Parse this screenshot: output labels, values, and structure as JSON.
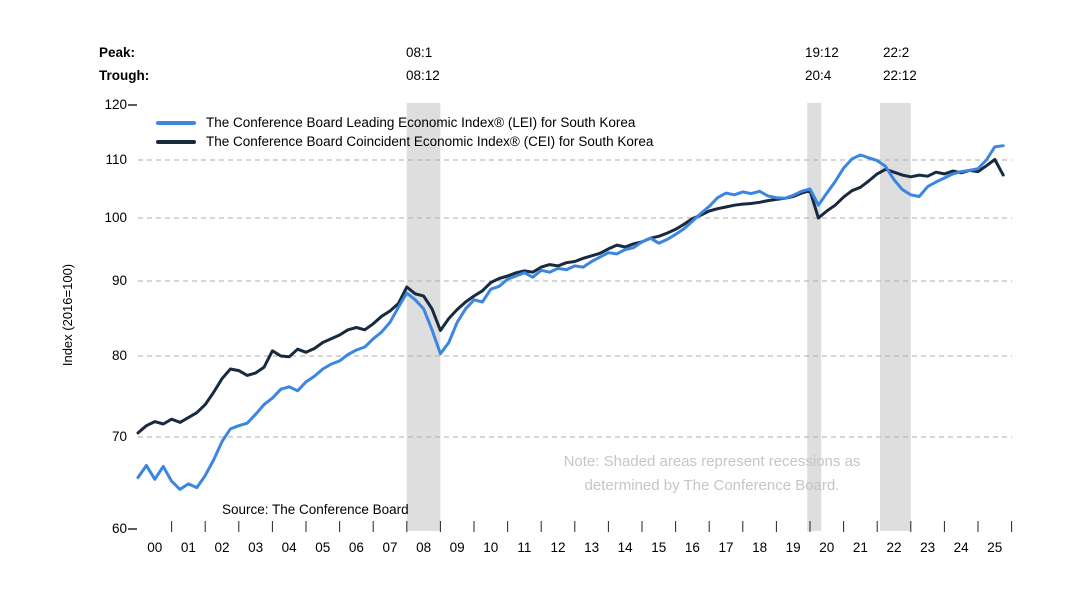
{
  "header": {
    "peak_label": "Peak:",
    "trough_label": "Trough:"
  },
  "recessions": [
    {
      "peak_label": "08:1",
      "trough_label": "08:12",
      "start": 2008.0,
      "end": 2009.0
    },
    {
      "peak_label": "19:12",
      "trough_label": "20:4",
      "start": 2019.917,
      "end": 2020.333
    },
    {
      "peak_label": "22:2",
      "trough_label": "22:12",
      "start": 2022.083,
      "end": 2023.0
    }
  ],
  "legend": [
    {
      "label": "The Conference Board Leading Economic Index® (LEI) for South Korea",
      "color": "#3B86E0"
    },
    {
      "label": "The Conference Board Coincident Economic Index® (CEI) for South Korea",
      "color": "#182A40"
    }
  ],
  "y_axis": {
    "title": "Index (2016=100)",
    "ticks": [
      120,
      110,
      100,
      90,
      80,
      70,
      60
    ]
  },
  "x_axis": {
    "labels": [
      "00",
      "01",
      "02",
      "03",
      "04",
      "05",
      "06",
      "07",
      "08",
      "09",
      "10",
      "11",
      "12",
      "13",
      "14",
      "15",
      "16",
      "17",
      "18",
      "19",
      "20",
      "21",
      "22",
      "23",
      "24",
      "25"
    ]
  },
  "source": "Source: The Conference Board",
  "note_line1": "Note: Shaded areas represent recessions as",
  "note_line2": "determined by The Conference Board.",
  "colors": {
    "lei": "#3B86E0",
    "cei": "#182A40",
    "recession_band": "#DEDEDE",
    "gridline": "#ADADAD",
    "note_text": "#C5C5CA"
  },
  "chart_data": {
    "type": "line",
    "title": "",
    "xlabel": "",
    "ylabel": "Index (2016=100)",
    "ylim": [
      60,
      120
    ],
    "xlim": [
      2000,
      2026
    ],
    "grid": "dashed horizontal at 70,80,90,100,110",
    "legend_position": "top-left inside",
    "x_unit": "decimal year (quarterly)",
    "x": [
      2000,
      2000.25,
      2000.5,
      2000.75,
      2001,
      2001.25,
      2001.5,
      2001.75,
      2002,
      2002.25,
      2002.5,
      2002.75,
      2003,
      2003.25,
      2003.5,
      2003.75,
      2004,
      2004.25,
      2004.5,
      2004.75,
      2005,
      2005.25,
      2005.5,
      2005.75,
      2006,
      2006.25,
      2006.5,
      2006.75,
      2007,
      2007.25,
      2007.5,
      2007.75,
      2008,
      2008.25,
      2008.5,
      2008.75,
      2009,
      2009.25,
      2009.5,
      2009.75,
      2010,
      2010.25,
      2010.5,
      2010.75,
      2011,
      2011.25,
      2011.5,
      2011.75,
      2012,
      2012.25,
      2012.5,
      2012.75,
      2013,
      2013.25,
      2013.5,
      2013.75,
      2014,
      2014.25,
      2014.5,
      2014.75,
      2015,
      2015.25,
      2015.5,
      2015.75,
      2016,
      2016.25,
      2016.5,
      2016.75,
      2017,
      2017.25,
      2017.5,
      2017.75,
      2018,
      2018.25,
      2018.5,
      2018.75,
      2019,
      2019.25,
      2019.5,
      2019.75,
      2020,
      2020.25,
      2020.5,
      2020.75,
      2021,
      2021.25,
      2021.5,
      2021.75,
      2022,
      2022.25,
      2022.5,
      2022.75,
      2023,
      2023.25,
      2023.5,
      2023.75,
      2024,
      2024.25,
      2024.5,
      2024.75,
      2025,
      2025.25,
      2025.5,
      2025.75
    ],
    "series": [
      {
        "name": "LEI",
        "color": "#3B86E0",
        "values": [
          65.6,
          66.9,
          65.4,
          66.8,
          65.2,
          64.3,
          64.9,
          64.5,
          65.8,
          67.5,
          69.5,
          71.0,
          71.4,
          71.7,
          72.8,
          74.0,
          74.8,
          75.9,
          76.2,
          75.7,
          76.8,
          77.5,
          78.4,
          79.0,
          79.4,
          80.2,
          80.8,
          81.2,
          82.3,
          83.2,
          84.5,
          86.5,
          88.4,
          87.5,
          86.3,
          83.5,
          80.3,
          81.8,
          84.5,
          86.3,
          87.5,
          87.2,
          88.9,
          89.3,
          90.3,
          90.8,
          91.3,
          90.6,
          91.7,
          91.4,
          92.0,
          91.8,
          92.4,
          92.2,
          93.1,
          93.8,
          94.5,
          94.3,
          95.0,
          95.3,
          96.2,
          96.8,
          96.0,
          96.6,
          97.4,
          98.3,
          99.5,
          100.8,
          102.0,
          103.5,
          104.3,
          104.0,
          104.5,
          104.2,
          104.6,
          103.8,
          103.5,
          103.4,
          103.9,
          104.6,
          105.0,
          102.2,
          104.3,
          106.3,
          108.6,
          110.2,
          110.9,
          110.4,
          109.9,
          108.9,
          106.6,
          104.9,
          104.0,
          103.7,
          105.4,
          106.2,
          106.9,
          107.6,
          108.0,
          108.2,
          108.5,
          110.0,
          112.4,
          112.6
        ]
      },
      {
        "name": "CEI",
        "color": "#182A40",
        "values": [
          70.5,
          71.4,
          71.9,
          71.6,
          72.2,
          71.8,
          72.4,
          73.0,
          74.0,
          75.5,
          77.2,
          78.4,
          78.2,
          77.6,
          77.9,
          78.6,
          80.7,
          80.0,
          79.9,
          80.9,
          80.5,
          81.0,
          81.8,
          82.3,
          82.8,
          83.5,
          83.8,
          83.5,
          84.3,
          85.3,
          86.0,
          87.0,
          89.2,
          88.3,
          88.0,
          86.3,
          83.4,
          85.0,
          86.2,
          87.2,
          88.0,
          88.7,
          89.8,
          90.4,
          90.8,
          91.3,
          91.6,
          91.4,
          92.2,
          92.6,
          92.4,
          92.9,
          93.1,
          93.6,
          94.0,
          94.4,
          95.1,
          95.7,
          95.4,
          95.9,
          96.2,
          96.8,
          97.1,
          97.6,
          98.2,
          99.0,
          99.9,
          100.5,
          101.2,
          101.6,
          101.9,
          102.2,
          102.4,
          102.5,
          102.7,
          103.0,
          103.2,
          103.4,
          103.7,
          104.3,
          104.7,
          100.0,
          101.2,
          102.2,
          103.6,
          104.7,
          105.3,
          106.4,
          107.6,
          108.4,
          107.9,
          107.4,
          107.1,
          107.4,
          107.2,
          107.9,
          107.6,
          108.1,
          107.8,
          108.2,
          108.0,
          109.0,
          110.1,
          107.4
        ]
      }
    ]
  }
}
